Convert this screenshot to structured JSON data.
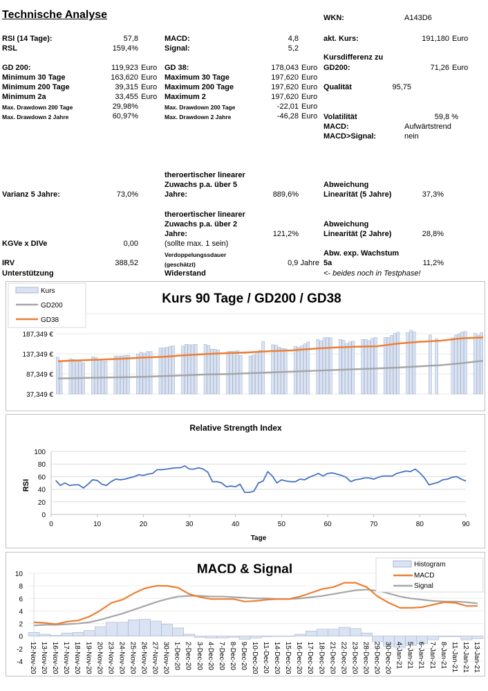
{
  "title": "Technische Analyse",
  "left": {
    "rsi_label": "RSI (14 Tage):",
    "rsi": "57,8",
    "rsl_label": "RSL",
    "rsl": "159,4%",
    "gd200_label": "GD 200:",
    "gd200": "119,923",
    "min30_label": "Minimum 30 Tage",
    "min30": "163,620",
    "min200_label": "Minimum 200 Tage",
    "min200": "39,315",
    "min2a_label": "Minimum 2a",
    "min2a": "33,455",
    "dd200_label": "Max. Drawdown 200 Tage",
    "dd200": "29,98%",
    "dd2_label": "Max. Drawdown 2 Jahre",
    "dd2": "60,97%",
    "currency": "Euro"
  },
  "mid": {
    "macd_label": "MACD:",
    "macd": "4,8",
    "signal_label": "Signal:",
    "signal": "5,2",
    "gd38_label": "GD 38:",
    "gd38": "178,043",
    "max30_label": "Maximum 30 Tage",
    "max30": "197,620",
    "max200_label": "Maximum 200 Tage",
    "max200": "197,620",
    "max2_label": "Maximum 2",
    "max2": "197,620",
    "dd200_label": "Max. Drawdown 200 Tage",
    "dd200": "-22,01",
    "dd2_label": "Max. Drawdown 2 Jahre",
    "dd2": "-46,28",
    "currency": "Euro"
  },
  "right": {
    "wkn_label": "WKN:",
    "wkn": "A143D6",
    "kurs_label": "akt. Kurs:",
    "kurs": "191,180",
    "currency": "Euro",
    "diff_label_1": "Kursdifferenz zu",
    "diff_label_2": "GD200:",
    "diff": "71,26",
    "qual_label": "Qualität",
    "qual": "95,75",
    "vol_label": "Volatilität",
    "vol": "59,8 %",
    "macd_label": "MACD:",
    "macd": "Aufwärtstrend",
    "macdsig_label": "MACD>Signal:",
    "macdsig": "nein"
  },
  "lower": {
    "varianz_label": "Varianz 5 Jahre:",
    "varianz": "73,0%",
    "lin5_label_1": "theroertischer linearer",
    "lin5_label_2": "Zuwachs p.a. über 5",
    "lin5_label_3": "Jahre:",
    "lin5": "889,6%",
    "abw5_label_1": "Abweichung",
    "abw5_label_2": "Linearität (5 Jahre)",
    "abw5": "37,3%",
    "lin2_label_1": "theroertischer linearer",
    "lin2_label_2": "Zuwachs p.a. über 2",
    "lin2_label_3": "Jahre:",
    "lin2": "121,2%",
    "abw2_label_1": "Abweichung",
    "abw2_label_2": "Linearität (2 Jahre)",
    "abw2": "28,8%",
    "kgve_label": "KGVe x DIVe",
    "kgve": "0,00",
    "kgve_note": "(sollte max. 1 sein)",
    "verd_label_1": "Verdoppelungssdauer",
    "verd_label_2": "(geschätzt)",
    "verd": "0,9 Jahre",
    "abwexp_label_1": "Abw. exp. Wachstum",
    "abwexp_label_2": "5a",
    "abwexp": "11,2%",
    "irv_label": "IRV",
    "irv": "388,52",
    "unterstuetzung_label": "Unterstützung",
    "widerstand_label": "Widerstand",
    "test_note": "<- beides noch in Testphase!"
  },
  "chart_data": [
    {
      "type": "bar+line",
      "title": "Kurs 90 Tage / GD200 / GD38",
      "y_ticks": [
        "187,349 €",
        "137,349 €",
        "87,349 €",
        "37,349 €"
      ],
      "y_tick_values": [
        187349,
        137349,
        87349,
        37349
      ],
      "ylim": [
        37349,
        237349
      ],
      "legend": [
        "Kurs",
        "GD200",
        "GD38"
      ],
      "legend_position": "top-left",
      "colors": {
        "Kurs": "#dae3f3",
        "GD200": "#a5a5a5",
        "GD38": "#ed7d31"
      },
      "kurs": [
        129,
        119,
        null,
        null,
        125,
        123,
        119,
        119,
        115,
        null,
        null,
        130,
        128,
        123,
        119,
        119,
        null,
        null,
        132,
        132,
        132,
        133,
        134,
        null,
        null,
        137,
        141,
        139,
        143,
        143,
        null,
        null,
        152,
        152,
        153,
        156,
        157,
        null,
        null,
        157,
        161,
        160,
        160,
        161,
        null,
        null,
        161,
        158,
        149,
        149,
        147,
        null,
        null,
        143,
        144,
        143,
        145,
        133,
        null,
        null,
        132,
        134,
        141,
        146,
        168,
        null,
        null,
        160,
        159,
        154,
        151,
        150,
        null,
        null,
        156,
        154,
        157,
        162,
        167,
        null,
        null,
        173,
        170,
        177,
        178,
        177,
        null,
        null,
        173,
        171,
        163,
        167,
        169,
        null,
        null,
        173,
        173,
        170,
        176,
        178,
        null,
        null,
        178,
        178,
        183,
        188,
        191,
        null,
        null,
        190,
        196,
        192,
        null,
        null,
        null,
        null,
        184,
        null,
        175,
        null,
        null,
        null,
        null,
        177,
        184,
        187,
        192,
        193,
        null,
        null,
        188,
        184,
        190
      ],
      "gd200": [
        76,
        77,
        78,
        79,
        80,
        82,
        84,
        86,
        87,
        89,
        91,
        93,
        95,
        97,
        99,
        101,
        103,
        106,
        109,
        114,
        120
      ],
      "gd38": [
        119,
        121,
        123,
        125,
        128,
        130,
        134,
        137,
        139,
        141,
        144,
        146,
        150,
        153,
        155,
        156,
        163,
        167,
        170,
        176,
        178
      ],
      "value_unit": "thousand €"
    },
    {
      "type": "line",
      "title": "Relative Strength Index",
      "xlabel": "Tage",
      "ylabel": "RSI",
      "xlim": [
        0,
        90
      ],
      "ylim": [
        0,
        100
      ],
      "x_ticks": [
        0,
        10,
        20,
        30,
        40,
        50,
        60,
        70,
        80,
        90
      ],
      "y_ticks": [
        0,
        20,
        40,
        60,
        80,
        100
      ],
      "color": "#4472c4",
      "values": [
        54,
        46,
        50,
        46,
        47,
        47,
        42,
        48,
        55,
        54,
        48,
        46,
        52,
        56,
        55,
        56,
        58,
        60,
        63,
        62,
        64,
        65,
        71,
        71,
        72,
        73,
        74,
        74,
        77,
        72,
        72,
        74,
        72,
        67,
        52,
        52,
        50,
        44,
        45,
        44,
        48,
        35,
        35,
        37,
        50,
        53,
        68,
        61,
        50,
        55,
        53,
        52,
        52,
        56,
        55,
        59,
        62,
        65,
        61,
        65,
        66,
        64,
        62,
        59,
        52,
        55,
        56,
        58,
        58,
        56,
        59,
        61,
        61,
        61,
        65,
        67,
        69,
        68,
        72,
        66,
        58,
        47,
        49,
        51,
        55,
        56,
        59,
        60,
        56,
        53
      ]
    },
    {
      "type": "bar+line",
      "title": "MACD & Signal",
      "ylim": [
        -4,
        10
      ],
      "y_ticks": [
        -4,
        -2,
        0,
        2,
        4,
        6,
        8,
        10
      ],
      "legend": [
        "Histogram",
        "MACD",
        "Signal"
      ],
      "legend_position": "top-right",
      "colors": {
        "Histogram": "#dae3f3",
        "MACD": "#ed7d31",
        "Signal": "#a5a5a5"
      },
      "categories": [
        "12-Nov-20",
        "13-Nov-20",
        "16-Nov-20",
        "17-Nov-20",
        "18-Nov-20",
        "19-Nov-20",
        "20-Nov-20",
        "23-Nov-20",
        "24-Nov-20",
        "25-Nov-20",
        "26-Nov-20",
        "27-Nov-20",
        "30-Nov-20",
        "1-Dec-20",
        "2-Dec-20",
        "3-Dec-20",
        "4-Dec-20",
        "7-Dec-20",
        "8-Dec-20",
        "9-Dec-20",
        "10-Dec-20",
        "11-Dec-20",
        "14-Dec-20",
        "15-Dec-20",
        "16-Dec-20",
        "17-Dec-20",
        "18-Dec-20",
        "21-Dec-20",
        "22-Dec-20",
        "23-Dec-20",
        "28-Dec-20",
        "29-Dec-20",
        "30-Dec-20",
        "4-Jan-21",
        "5-Jan-21",
        "6-Jan-21",
        "7-Jan-21",
        "8-Jan-21",
        "11-Jan-21",
        "12-Jan-21",
        "13-Jan-21"
      ],
      "histogram": [
        0.6,
        0.3,
        0.1,
        0.5,
        0.6,
        0.9,
        1.5,
        2.2,
        2.2,
        2.6,
        2.7,
        2.4,
        1.9,
        1.3,
        0.3,
        -0.2,
        -0.3,
        -0.3,
        -0.2,
        -0.5,
        -0.3,
        -0.1,
        0,
        0,
        0.3,
        0.8,
        1.1,
        1.1,
        1.4,
        1.2,
        0.5,
        -0.9,
        -1.6,
        -1.8,
        -1.5,
        -1.2,
        -0.6,
        -0.1,
        -0.1,
        -0.6,
        -0.4
      ],
      "macd": [
        2.2,
        2.1,
        1.9,
        2.3,
        2.5,
        3.1,
        4.1,
        5.3,
        5.8,
        6.8,
        7.6,
        8.0,
        8.0,
        7.7,
        6.7,
        6.2,
        5.9,
        5.9,
        5.9,
        5.5,
        5.6,
        5.8,
        5.9,
        5.9,
        6.3,
        6.9,
        7.5,
        7.8,
        8.5,
        8.5,
        7.8,
        6.3,
        5.3,
        4.5,
        4.5,
        4.6,
        5.0,
        5.4,
        5.3,
        4.8,
        4.8
      ],
      "signal": [
        1.7,
        1.8,
        1.8,
        1.9,
        2.0,
        2.2,
        2.6,
        3.1,
        3.6,
        4.2,
        4.8,
        5.4,
        5.9,
        6.3,
        6.4,
        6.4,
        6.3,
        6.3,
        6.2,
        6.1,
        6.0,
        6.0,
        5.9,
        5.9,
        6.0,
        6.2,
        6.4,
        6.7,
        7.0,
        7.3,
        7.4,
        7.2,
        6.8,
        6.3,
        6.0,
        5.8,
        5.6,
        5.5,
        5.5,
        5.4,
        5.2
      ]
    }
  ]
}
